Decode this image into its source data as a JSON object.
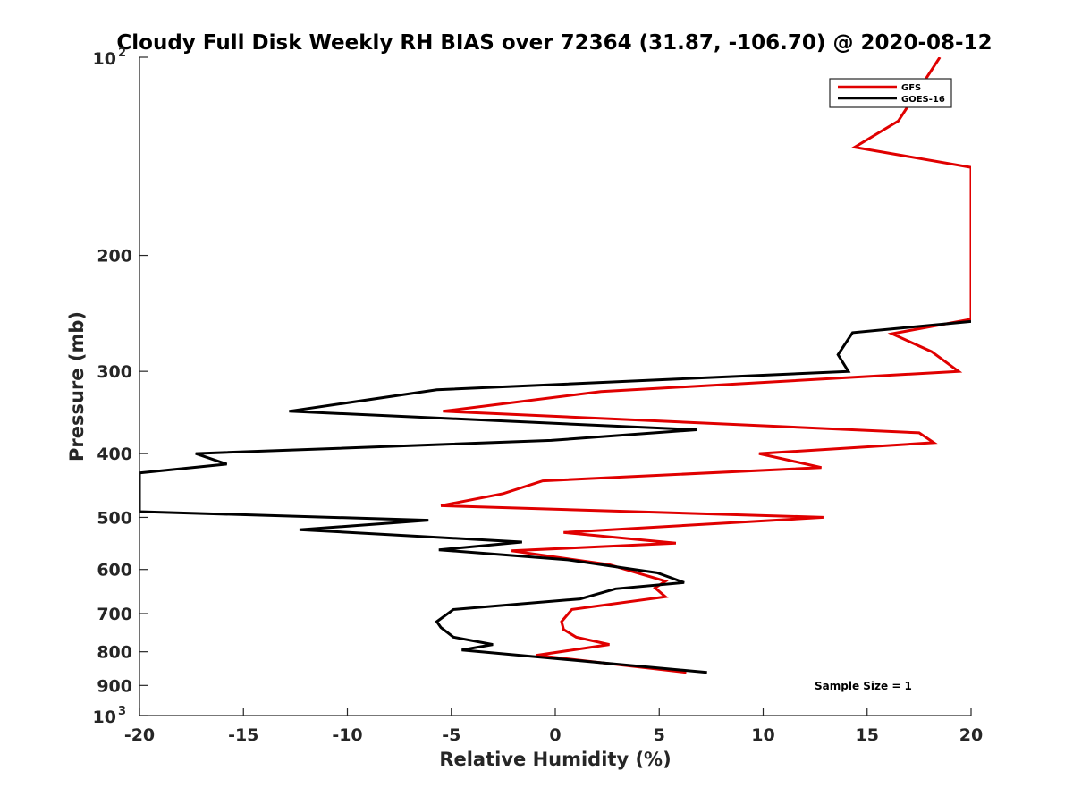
{
  "chart_data": {
    "type": "line",
    "title": "Cloudy Full Disk Weekly RH BIAS over 72364 (31.87, -106.70) @ 2020-08-12",
    "xlabel": "Relative Humidity (%)",
    "ylabel": "Pressure (mb)",
    "xlim": [
      -20,
      20
    ],
    "ylim": [
      100,
      1000
    ],
    "y_scale": "log",
    "y_reversed": true,
    "grid": false,
    "legend_position": "top-right",
    "x_ticks": [
      "-20",
      "-15",
      "-10",
      "-5",
      "0",
      "5",
      "10",
      "15",
      "20"
    ],
    "y_ticks": [
      {
        "value": 100,
        "base": "10",
        "exp": "2",
        "label": ""
      },
      {
        "value": 200,
        "base": "",
        "exp": "",
        "label": "200"
      },
      {
        "value": 300,
        "base": "",
        "exp": "",
        "label": "300"
      },
      {
        "value": 400,
        "base": "",
        "exp": "",
        "label": "400"
      },
      {
        "value": 500,
        "base": "",
        "exp": "",
        "label": "500"
      },
      {
        "value": 600,
        "base": "",
        "exp": "",
        "label": "600"
      },
      {
        "value": 700,
        "base": "",
        "exp": "",
        "label": "700"
      },
      {
        "value": 800,
        "base": "",
        "exp": "",
        "label": "800"
      },
      {
        "value": 900,
        "base": "",
        "exp": "",
        "label": "900"
      },
      {
        "value": 1000,
        "base": "10",
        "exp": "3",
        "label": ""
      }
    ],
    "series": [
      {
        "name": "GFS",
        "color": "#e00000",
        "points": [
          [
            18.5,
            100
          ],
          [
            16.5,
            125
          ],
          [
            14.4,
            137
          ],
          [
            20,
            147
          ],
          [
            20,
            250
          ],
          [
            16.2,
            263
          ],
          [
            18.1,
            280
          ],
          [
            19.4,
            300
          ],
          [
            2.2,
            322
          ],
          [
            -5.4,
            345
          ],
          [
            17.5,
            372
          ],
          [
            18.2,
            385
          ],
          [
            9.8,
            400
          ],
          [
            12.8,
            420
          ],
          [
            -0.6,
            440
          ],
          [
            -2.5,
            460
          ],
          [
            -5.5,
            480
          ],
          [
            12.9,
            500
          ],
          [
            0.4,
            527
          ],
          [
            5.8,
            547
          ],
          [
            -2.1,
            562
          ],
          [
            2.6,
            590
          ],
          [
            5.3,
            625
          ],
          [
            4.8,
            640
          ],
          [
            5.3,
            660
          ],
          [
            0.8,
            690
          ],
          [
            0.3,
            720
          ],
          [
            0.4,
            740
          ],
          [
            1,
            760
          ],
          [
            2.6,
            780
          ],
          [
            -0.9,
            810
          ],
          [
            6.3,
            860
          ]
        ]
      },
      {
        "name": "GOES-16",
        "color": "#000000",
        "points": [
          [
            20,
            252
          ],
          [
            14.3,
            262
          ],
          [
            13.6,
            283
          ],
          [
            14.1,
            300
          ],
          [
            -5.7,
            320
          ],
          [
            -12.8,
            345
          ],
          [
            6.8,
            368
          ],
          [
            -0.2,
            382
          ],
          [
            -17.3,
            400
          ],
          [
            -15.8,
            415
          ],
          [
            -20,
            428
          ],
          [
            -20,
            490
          ],
          [
            -6.1,
            505
          ],
          [
            -12.3,
            522
          ],
          [
            -1.6,
            545
          ],
          [
            -5.6,
            560
          ],
          [
            0.6,
            580
          ],
          [
            4.9,
            607
          ],
          [
            6.2,
            628
          ],
          [
            2.9,
            642
          ],
          [
            1.2,
            665
          ],
          [
            -4.9,
            690
          ],
          [
            -5.7,
            720
          ],
          [
            -5.5,
            735
          ],
          [
            -4.9,
            760
          ],
          [
            -3,
            780
          ],
          [
            -4.5,
            795
          ],
          [
            7.3,
            860
          ]
        ]
      }
    ],
    "annotations": [
      "Sample Size = 1"
    ]
  }
}
